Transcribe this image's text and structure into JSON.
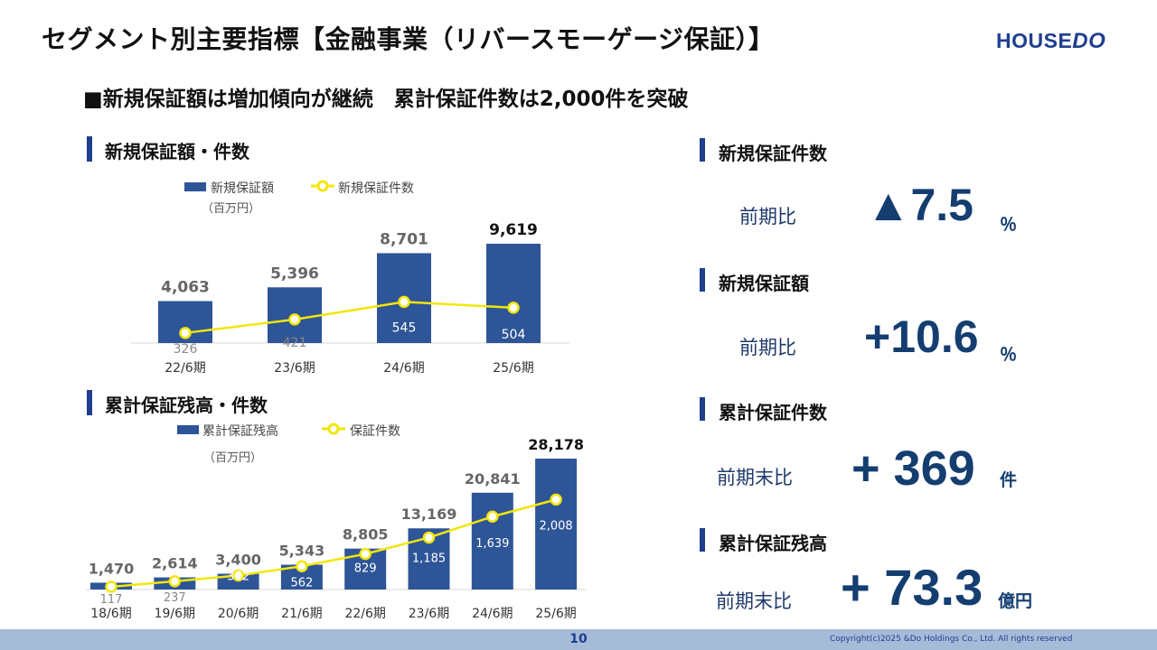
{
  "header": {
    "title": "セグメント別主要指標【金融事業（リバースモーゲージ保証）】",
    "logo_main": "HOUSE",
    "logo_accent": "DO",
    "subtitle": "■新規保証額は増加傾向が継続　累計保証件数は2,000件を突破"
  },
  "colors": {
    "bar": "#2e5597",
    "line": "#f2e60a",
    "accent": "#1f3f8e",
    "kpi": "#143d70"
  },
  "chart1": {
    "title": "新規保証額・件数",
    "legend_bar": "新規保証額",
    "legend_line": "新規保証件数",
    "unit": "（百万円）"
  },
  "chart2": {
    "title": "累計保証残高・件数",
    "legend_bar": "累計保証残高",
    "legend_line": "保証件数",
    "unit": "（百万円）"
  },
  "chart_data": [
    {
      "type": "bar",
      "categories": [
        "22/6期",
        "23/6期",
        "24/6期",
        "25/6期"
      ],
      "series": [
        {
          "name": "新規保証額",
          "type": "bar",
          "values": [
            4063,
            5396,
            8701,
            9619
          ],
          "labels": [
            "4,063",
            "5,396",
            "8,701",
            "9,619"
          ]
        },
        {
          "name": "新規保証件数",
          "type": "line",
          "values": [
            326,
            421,
            545,
            504
          ],
          "labels": [
            "326",
            "421",
            "545",
            "504"
          ]
        }
      ],
      "ylabel": "（百万円）"
    },
    {
      "type": "bar",
      "categories": [
        "18/6期",
        "19/6期",
        "20/6期",
        "21/6期",
        "22/6期",
        "23/6期",
        "24/6期",
        "25/6期"
      ],
      "series": [
        {
          "name": "累計保証残高",
          "type": "bar",
          "values": [
            1470,
            2614,
            3400,
            5343,
            8805,
            13169,
            20841,
            28178
          ],
          "labels": [
            "1,470",
            "2,614",
            "3,400",
            "5,343",
            "8,805",
            "13,169",
            "20,841",
            "28,178"
          ]
        },
        {
          "name": "保証件数",
          "type": "line",
          "values": [
            117,
            237,
            362,
            562,
            829,
            1185,
            1639,
            2008
          ],
          "labels": [
            "117",
            "237",
            "362",
            "562",
            "829",
            "1,185",
            "1,639",
            "2,008"
          ]
        }
      ],
      "ylabel": "（百万円）"
    }
  ],
  "kpis": [
    {
      "title": "新規保証件数",
      "label": "前期比",
      "value": "▲7.5",
      "unit": "％"
    },
    {
      "title": "新規保証額",
      "label": "前期比",
      "value": "+10.6",
      "unit": "％"
    },
    {
      "title": "累計保証件数",
      "label": "前期末比",
      "value": "+ 369",
      "unit": "件"
    },
    {
      "title": "累計保証残高",
      "label": "前期末比",
      "value": "+ 73.3",
      "unit": "億円"
    }
  ],
  "footer": {
    "page": "10",
    "copyright": "Copyright(c)2025 &Do Holdings Co., Ltd. All rights reserved"
  }
}
